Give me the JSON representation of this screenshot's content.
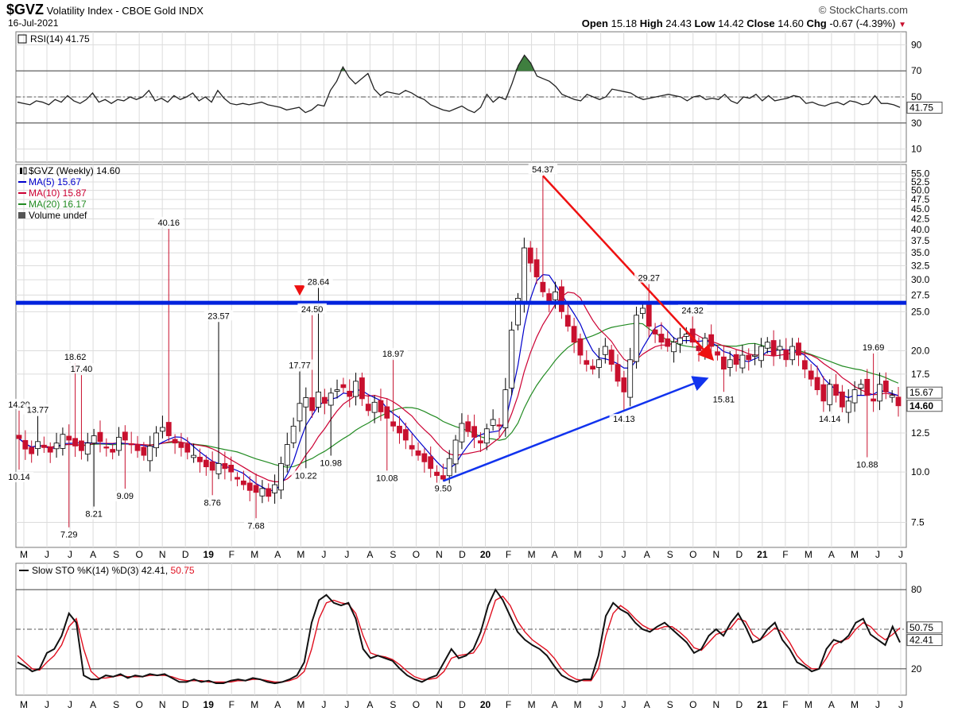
{
  "header": {
    "symbol": "$GVZ",
    "name": "Volatility Index - CBOE Gold",
    "exchange": "INDX",
    "date": "16-Jul-2021",
    "watermark": "© StockCharts.com",
    "open_label": "Open",
    "open": "15.18",
    "high_label": "High",
    "high": "24.43",
    "low_label": "Low",
    "low": "14.42",
    "close_label": "Close",
    "close": "14.60",
    "chg_label": "Chg",
    "chg": "-0.67 (-4.39%)",
    "chg_marker": "▼"
  },
  "chart_data": [
    {
      "type": "line",
      "panel": "rsi",
      "legend": "RSI(14) 41.75",
      "y_ticks": [
        90,
        70,
        50,
        30,
        10
      ],
      "ylim": [
        0,
        100
      ],
      "ref_lines": [
        70,
        30
      ],
      "mid_line": 50,
      "last_label": "41.75",
      "series": [
        {
          "name": "RSI(14)",
          "values": [
            46,
            45,
            44,
            47,
            46,
            44,
            48,
            46,
            51,
            47,
            45,
            48,
            53,
            46,
            48,
            45,
            48,
            47,
            50,
            48,
            50,
            55,
            47,
            49,
            46,
            51,
            48,
            50,
            53,
            47,
            50,
            46,
            55,
            49,
            45,
            44,
            45,
            44,
            45,
            46,
            44,
            43,
            42,
            40,
            41,
            42,
            38,
            40,
            44,
            43,
            55,
            62,
            73,
            65,
            60,
            64,
            68,
            56,
            51,
            54,
            53,
            52,
            55,
            53,
            50,
            48,
            44,
            42,
            40,
            39,
            41,
            43,
            40,
            38,
            42,
            52,
            46,
            50,
            48,
            60,
            74,
            82,
            76,
            66,
            64,
            62,
            58,
            52,
            50,
            48,
            47,
            52,
            50,
            48,
            50,
            56,
            55,
            54,
            53,
            50,
            48,
            49,
            50,
            51,
            52,
            51,
            50,
            47,
            50,
            51,
            48,
            49,
            48,
            52,
            47,
            45,
            50,
            49,
            52,
            47,
            51,
            47,
            48,
            49,
            51,
            50,
            45,
            46,
            44,
            43,
            45,
            46,
            44,
            47,
            46,
            44,
            45,
            51,
            45,
            45,
            44,
            42
          ]
        }
      ]
    },
    {
      "type": "candlestick",
      "panel": "price",
      "legend": [
        "$GVZ (Weekly) 14.60",
        "MA(5) 15.67",
        "MA(10) 15.87",
        "MA(20) 16.17",
        "Volume undef"
      ],
      "y_scale": "log",
      "ylim": [
        6.5,
        58
      ],
      "y_ticks": [
        "55.0",
        "52.5",
        "50.0",
        "47.5",
        "45.0",
        "42.5",
        "40.0",
        "37.5",
        "35.0",
        "32.5",
        "30.0",
        "27.5",
        "25.0",
        "20.0",
        "17.5",
        "12.5",
        "10.0",
        "7.5"
      ],
      "close": [
        12.1,
        11.4,
        11.1,
        11.9,
        11.5,
        11.2,
        11.8,
        12.4,
        12.0,
        11.6,
        11.3,
        11.8,
        12.3,
        11.9,
        11.5,
        11.2,
        12.2,
        12.0,
        11.7,
        11.3,
        11.0,
        11.6,
        12.5,
        12.9,
        12.3,
        11.8,
        11.5,
        11.2,
        11.0,
        10.6,
        10.3,
        10.1,
        10.5,
        10.2,
        10.0,
        9.6,
        9.3,
        9.0,
        8.9,
        9.1,
        8.7,
        9.3,
        10.5,
        11.7,
        13.0,
        14.8,
        15.3,
        14.2,
        15.8,
        14.8,
        15.7,
        16.0,
        16.2,
        15.4,
        16.8,
        15.2,
        14.2,
        14.9,
        14.1,
        13.6,
        13.0,
        12.5,
        12.0,
        11.4,
        11.0,
        10.6,
        10.2,
        9.8,
        9.6,
        10.8,
        12.0,
        13.2,
        12.6,
        12.2,
        11.8,
        12.8,
        13.5,
        13.0,
        16.0,
        22.5,
        27.0,
        36.0,
        33.0,
        30.5,
        28.0,
        26.5,
        28.0,
        25.0,
        23.0,
        21.0,
        19.5,
        18.5,
        18.0,
        19.0,
        20.5,
        18.5,
        16.8,
        15.8,
        19.0,
        24.5,
        25.5,
        23.0,
        22.0,
        21.0,
        20.5,
        21.0,
        21.5,
        22.0,
        21.0,
        20.0,
        21.5,
        20.5,
        19.5,
        18.0,
        19.0,
        18.5,
        19.5,
        19.0,
        19.5,
        20.5,
        21.0,
        19.5,
        20.5,
        19.0,
        20.5,
        19.5,
        18.0,
        17.0,
        16.0,
        15.0,
        16.5,
        15.5,
        14.5,
        15.0,
        16.0,
        16.5,
        15.5,
        15.0,
        16.5,
        15.8,
        15.5,
        14.6
      ],
      "highs": [
        [
          24,
          40.16
        ],
        [
          32,
          23.57
        ],
        [
          9,
          18.62
        ],
        [
          10,
          17.4
        ],
        [
          84,
          54.37
        ],
        [
          101,
          29.27
        ],
        [
          108,
          24.32
        ],
        [
          137,
          19.69
        ],
        [
          48,
          28.64
        ],
        [
          60,
          18.97
        ],
        [
          47,
          24.5
        ],
        [
          0,
          14.2
        ],
        [
          3,
          13.77
        ],
        [
          45,
          17.77
        ]
      ],
      "lows": [
        [
          8,
          7.29
        ],
        [
          17,
          9.09
        ],
        [
          12,
          8.21
        ],
        [
          38,
          7.68
        ],
        [
          31,
          8.76
        ],
        [
          46,
          10.22
        ],
        [
          50,
          10.98
        ],
        [
          59,
          10.08
        ],
        [
          68,
          9.5
        ],
        [
          97,
          14.13
        ],
        [
          113,
          15.81
        ],
        [
          130,
          14.14
        ],
        [
          136,
          10.88
        ],
        [
          0,
          10.14
        ]
      ],
      "labels": [
        "40.16",
        "23.57",
        "18.62",
        "17.40",
        "54.37",
        "29.27",
        "24.32",
        "19.69",
        "28.64",
        "18.97",
        "24.50",
        "14.20",
        "13.77",
        "17.77",
        "7.29",
        "9.09",
        "8.21",
        "7.68",
        "8.76",
        "10.22",
        "10.98",
        "10.08",
        "9.50",
        "14.13",
        "15.81",
        "14.14",
        "10.88",
        "10.14"
      ],
      "resistance": 26.3,
      "last_labels": [
        "15.67",
        "14.60"
      ]
    },
    {
      "type": "line",
      "panel": "stochastic",
      "legend_prefix": "Slow STO %K(14) %D(3)",
      "legend_k": "42.41",
      "legend_d": "50.75",
      "y_ticks": [
        80,
        20
      ],
      "ylim": [
        0,
        100
      ],
      "ref_lines": [
        80,
        20
      ],
      "mid_line": 50,
      "last_k": "42.41",
      "last_d": "50.75",
      "series": [
        {
          "name": "%K",
          "values": [
            25,
            22,
            18,
            20,
            32,
            35,
            45,
            62,
            55,
            15,
            12,
            12,
            15,
            14,
            16,
            13,
            15,
            14,
            16,
            15,
            16,
            13,
            10,
            10,
            12,
            10,
            11,
            9,
            9,
            11,
            12,
            11,
            13,
            12,
            10,
            9,
            10,
            12,
            15,
            25,
            55,
            72,
            76,
            70,
            68,
            70,
            58,
            35,
            28,
            30,
            28,
            26,
            20,
            15,
            12,
            10,
            13,
            15,
            25,
            35,
            28,
            30,
            35,
            48,
            68,
            80,
            72,
            60,
            48,
            42,
            38,
            35,
            30,
            22,
            15,
            12,
            10,
            12,
            12,
            30,
            60,
            70,
            65,
            62,
            55,
            50,
            48,
            52,
            55,
            50,
            45,
            40,
            32,
            35,
            45,
            50,
            45,
            55,
            62,
            52,
            40,
            42,
            50,
            55,
            42,
            35,
            25,
            22,
            18,
            20,
            35,
            42,
            40,
            45,
            55,
            58,
            46,
            42,
            38,
            52,
            40
          ]
        },
        {
          "name": "%D",
          "values": [
            30,
            25,
            20,
            19,
            25,
            30,
            38,
            52,
            58,
            35,
            18,
            13,
            13,
            14,
            15,
            14,
            14,
            14,
            15,
            15,
            15,
            14,
            12,
            11,
            11,
            11,
            10,
            10,
            10,
            10,
            11,
            11,
            12,
            12,
            11,
            10,
            10,
            11,
            13,
            18,
            35,
            58,
            70,
            72,
            70,
            69,
            62,
            45,
            32,
            30,
            29,
            27,
            23,
            18,
            14,
            12,
            12,
            13,
            18,
            28,
            30,
            31,
            32,
            40,
            55,
            72,
            75,
            68,
            56,
            48,
            42,
            38,
            34,
            28,
            20,
            15,
            12,
            11,
            11,
            20,
            45,
            62,
            68,
            64,
            58,
            53,
            50,
            50,
            52,
            52,
            48,
            43,
            36,
            34,
            40,
            46,
            48,
            51,
            58,
            56,
            46,
            42,
            46,
            51,
            48,
            40,
            30,
            24,
            20,
            20,
            28,
            38,
            41,
            43,
            50,
            55,
            52,
            46,
            42,
            46,
            51
          ]
        }
      ]
    }
  ],
  "x_axis": {
    "months": [
      "M",
      "J",
      "J",
      "A",
      "S",
      "O",
      "N",
      "D",
      "19",
      "F",
      "M",
      "A",
      "M",
      "J",
      "J",
      "A",
      "S",
      "O",
      "N",
      "D",
      "20",
      "F",
      "M",
      "A",
      "M",
      "J",
      "J",
      "A",
      "S",
      "O",
      "N",
      "D",
      "21",
      "F",
      "M",
      "A",
      "M",
      "J",
      "J"
    ],
    "year_labels": [
      "19",
      "20",
      "21"
    ]
  },
  "colors": {
    "ma5": "#0000cc",
    "ma10": "#cc0033",
    "ma20": "#228b22",
    "down_candle": "#c8102e",
    "up_candle": "#ffffff",
    "resistance": "#0022dd",
    "trend_red": "#ee1111",
    "trend_blue": "#1133ee",
    "rsi_fill": "#3f7f3f"
  }
}
